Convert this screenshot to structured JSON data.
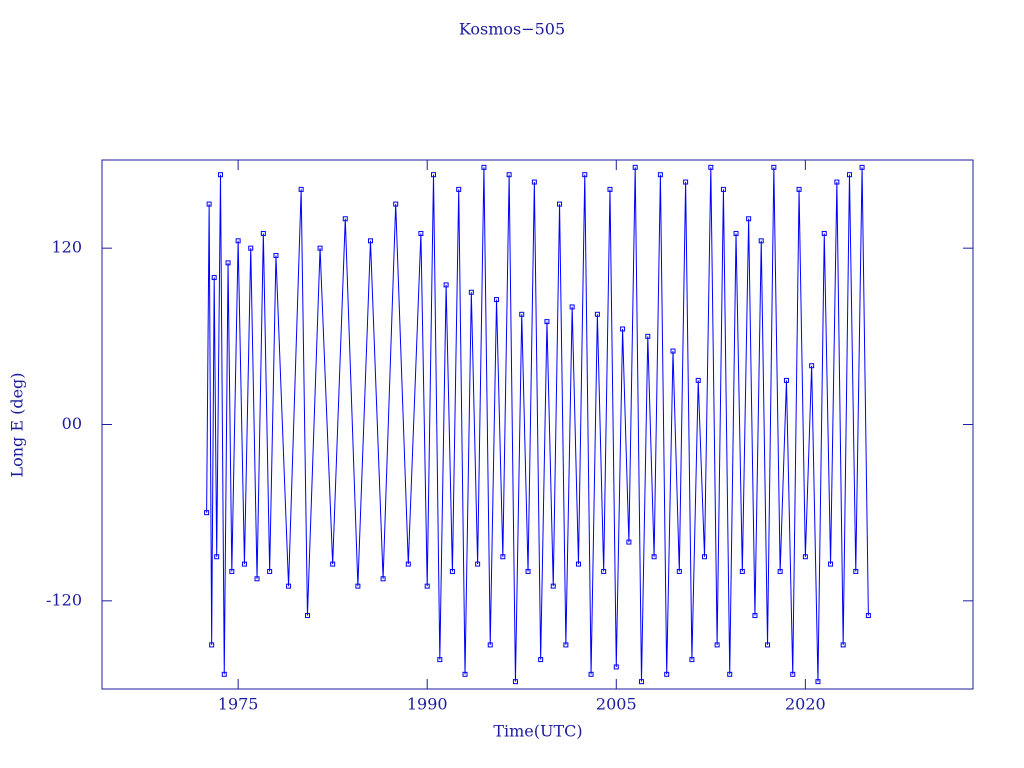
{
  "chart_data": {
    "type": "line",
    "title": "Kosmos−505",
    "x_label": "Time(UTC)",
    "y_label": "Long E (deg)",
    "color": "#0000ff",
    "xlim": [
      1964.2,
      2033.3
    ],
    "ylim": [
      -180,
      180
    ],
    "xticks": [
      1975,
      1990,
      2005,
      2020
    ],
    "yticks": [
      -120,
      {
        "value": 0,
        "label": "00"
      },
      120
    ],
    "x": [
      1972.5,
      1972.7,
      1972.9,
      1973.1,
      1973.3,
      1973.6,
      1973.9,
      1974.2,
      1974.5,
      1975.0,
      1975.5,
      1976.0,
      1976.5,
      1977.0,
      1977.5,
      1978.0,
      1979.0,
      1980.0,
      1980.5,
      1981.5,
      1982.5,
      1983.5,
      1984.5,
      1985.5,
      1986.5,
      1987.5,
      1988.5,
      1989.5,
      1990.0,
      1990.5,
      1991.0,
      1991.5,
      1992.0,
      1992.5,
      1993.0,
      1993.5,
      1994.0,
      1994.5,
      1995.0,
      1995.5,
      1996.0,
      1996.5,
      1997.0,
      1997.5,
      1998.0,
      1998.5,
      1999.0,
      1999.5,
      2000.0,
      2000.5,
      2001.0,
      2001.5,
      2002.0,
      2002.5,
      2003.0,
      2003.5,
      2004.0,
      2004.5,
      2005.0,
      2005.5,
      2006.0,
      2006.5,
      2007.0,
      2007.5,
      2008.0,
      2008.5,
      2009.0,
      2009.5,
      2010.0,
      2010.5,
      2011.0,
      2011.5,
      2012.0,
      2012.5,
      2013.0,
      2013.5,
      2014.0,
      2014.5,
      2015.0,
      2015.5,
      2016.0,
      2016.5,
      2017.0,
      2017.5,
      2018.0,
      2018.5,
      2019.0,
      2019.5,
      2020.0,
      2020.5,
      2021.0,
      2021.5,
      2022.0,
      2022.5,
      2023.0,
      2023.5,
      2024.0,
      2024.5,
      2025.0
    ],
    "values": [
      -60,
      150,
      -150,
      100,
      -90,
      170,
      -170,
      110,
      -100,
      125,
      -95,
      120,
      -105,
      130,
      -100,
      115,
      -110,
      160,
      -130,
      120,
      -95,
      140,
      -110,
      125,
      -105,
      150,
      -95,
      130,
      -110,
      170,
      -160,
      95,
      -100,
      160,
      -170,
      90,
      -95,
      175,
      -150,
      85,
      -90,
      170,
      -175,
      75,
      -100,
      165,
      -160,
      70,
      -110,
      150,
      -150,
      80,
      -95,
      170,
      -170,
      75,
      -100,
      160,
      -165,
      65,
      -80,
      175,
      -175,
      60,
      -90,
      170,
      -170,
      50,
      -100,
      165,
      -160,
      30,
      -90,
      175,
      -150,
      160,
      -170,
      130,
      -100,
      140,
      -130,
      125,
      -150,
      175,
      -100,
      30,
      -170,
      160,
      -90,
      40,
      -175,
      130,
      -95,
      165,
      -150,
      170,
      -100,
      175,
      -130
    ]
  }
}
